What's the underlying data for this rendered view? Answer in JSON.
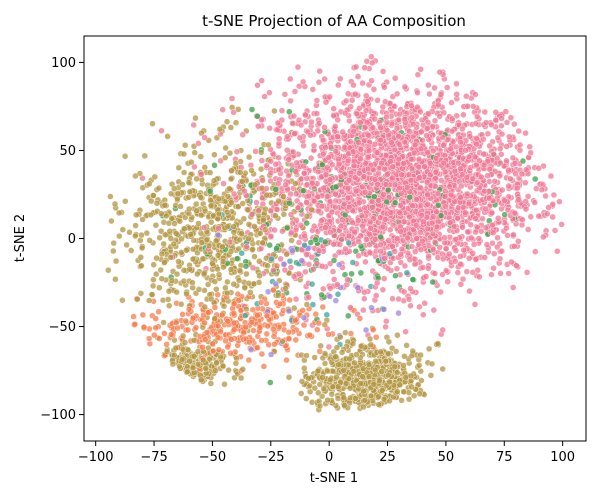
{
  "chart_data": {
    "type": "scatter",
    "title": "t-SNE Projection of AA Composition",
    "xlabel": "t-SNE 1",
    "ylabel": "t-SNE 2",
    "xlim": [
      -105,
      110
    ],
    "ylim": [
      -115,
      115
    ],
    "xticks": [
      -100,
      -75,
      -50,
      -25,
      0,
      25,
      50,
      75,
      100
    ],
    "yticks": [
      -100,
      -50,
      0,
      50,
      100
    ],
    "xtick_labels": [
      "−100",
      "−75",
      "−50",
      "−25",
      "0",
      "25",
      "50",
      "75",
      "100"
    ],
    "ytick_labels": [
      "−100",
      "−50",
      "0",
      "50",
      "100"
    ],
    "grid": false,
    "legend": "none",
    "colors": {
      "pink": "#f07894",
      "olive": "#b39542",
      "orange": "#f77b4c",
      "green": "#3ba24a",
      "teal": "#3aa4a0",
      "purple": "#9b87e3",
      "point_edge": "#ffffff"
    },
    "clusters": [
      {
        "color_key": "pink",
        "cx": 30,
        "cy": 30,
        "rx": 65,
        "ry": 60,
        "weight": 0.55
      },
      {
        "color_key": "olive",
        "cx": -50,
        "cy": 5,
        "rx": 40,
        "ry": 55,
        "weight": 0.14
      },
      {
        "color_key": "olive",
        "cx": 15,
        "cy": -80,
        "rx": 28,
        "ry": 22,
        "weight": 0.11
      },
      {
        "color_key": "olive",
        "cx": -60,
        "cy": -72,
        "rx": 18,
        "ry": 12,
        "weight": 0.04
      },
      {
        "color_key": "orange",
        "cx": -40,
        "cy": -50,
        "rx": 45,
        "ry": 20,
        "weight": 0.06
      },
      {
        "color_key": "green",
        "cx": 10,
        "cy": 10,
        "rx": 70,
        "ry": 60,
        "weight": 0.03
      },
      {
        "color_key": "teal",
        "cx": -20,
        "cy": -10,
        "rx": 50,
        "ry": 50,
        "weight": 0.005
      },
      {
        "color_key": "purple",
        "cx": -10,
        "cy": -30,
        "rx": 50,
        "ry": 40,
        "weight": 0.005
      }
    ]
  }
}
